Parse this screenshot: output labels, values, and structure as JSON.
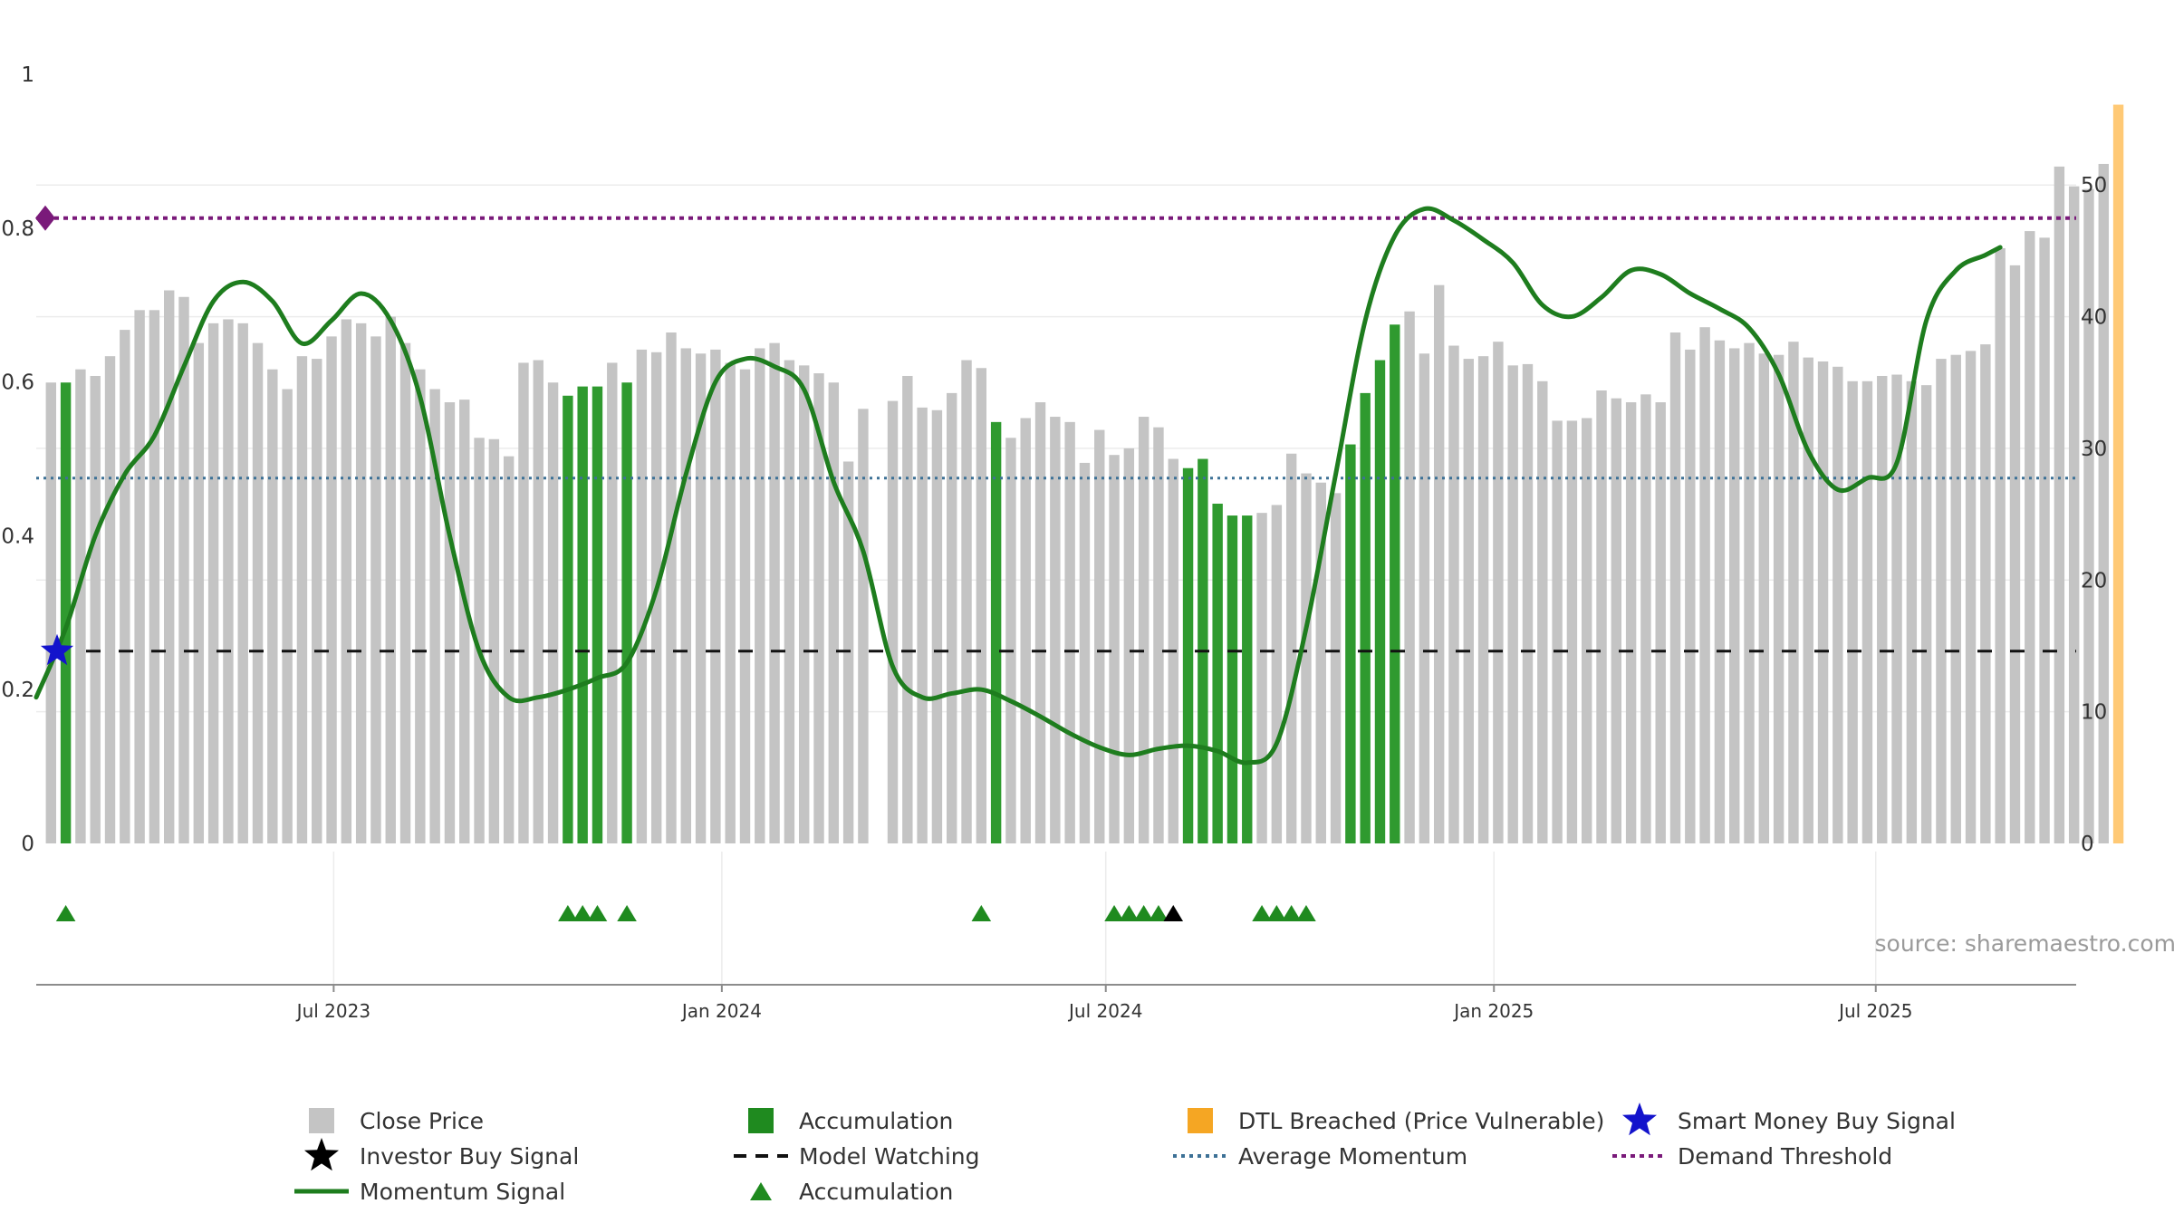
{
  "colors": {
    "close": "#c4c4c4",
    "accumulation": "#2f9a2f",
    "dtl": "#ffc975",
    "momentum": "#1e7d1e",
    "average": "#3d7196",
    "demand": "#7a1a7a",
    "watch": "#111111",
    "smart": "#1313cc",
    "investor": "#000000"
  },
  "chart_data": {
    "type": "bar",
    "left_axis": {
      "ylim": [
        0,
        1
      ],
      "ticks": [
        "0",
        "0.2",
        "0.4",
        "0.6",
        "0.8",
        "1"
      ],
      "tick_values": [
        0,
        0.2,
        0.4,
        0.6,
        0.8,
        1
      ]
    },
    "right_axis": {
      "ylim": [
        0,
        56
      ],
      "ticks": [
        "0",
        "10",
        "20",
        "30",
        "40",
        "50"
      ],
      "tick_values": [
        0,
        10,
        20,
        30,
        40,
        50
      ]
    },
    "x_range": [
      "2023-02-10",
      "2025-10-04"
    ],
    "x_ticks": [
      {
        "label": "Jul 2023",
        "date": "2023-07-01"
      },
      {
        "label": "Jan 2024",
        "date": "2024-01-01"
      },
      {
        "label": "Jul 2024",
        "date": "2024-07-01"
      },
      {
        "label": "Jan 2025",
        "date": "2025-01-01"
      },
      {
        "label": "Jul 2025",
        "date": "2025-07-01"
      }
    ],
    "start_date": "2023-02-17",
    "bar_interval_days": 7,
    "close_price": [
      35,
      35,
      36,
      35.5,
      37,
      39,
      40.5,
      40.5,
      42,
      41.5,
      38,
      39.5,
      39.8,
      39.5,
      38,
      36,
      34.5,
      37,
      36.8,
      38.5,
      39.8,
      39.5,
      38.5,
      40,
      38,
      36,
      34.5,
      33.5,
      33.7,
      30.8,
      30.7,
      29.4,
      36.5,
      36.7,
      35,
      34,
      34.7,
      34.7,
      36.5,
      35,
      37.5,
      37.3,
      38.8,
      37.6,
      37.2,
      37.5,
      36.5,
      36,
      37.6,
      38,
      36.7,
      36.3,
      35.7,
      35,
      29,
      33,
      null,
      33.6,
      35.5,
      33.1,
      32.9,
      34.2,
      36.7,
      36.1,
      32,
      30.8,
      32.3,
      33.5,
      32.4,
      32.0,
      28.9,
      31.4,
      29.5,
      30.0,
      32.4,
      31.6,
      29.2,
      28.5,
      29.2,
      25.8,
      24.9,
      24.9,
      25.1,
      25.7,
      29.6,
      28.1,
      27.4,
      26.6,
      30.3,
      34.2,
      36.7,
      39.4,
      40.4,
      37.2,
      42.4,
      37.8,
      36.8,
      37.0,
      38.1,
      36.3,
      36.4,
      35.1,
      32.1,
      32.1,
      32.3,
      34.4,
      33.8,
      33.5,
      34.1,
      33.5,
      38.8,
      37.5,
      39.2,
      38.2,
      37.6,
      38.0,
      37.2,
      37.1,
      38.1,
      36.9,
      36.6,
      36.2,
      35.1,
      35.1,
      35.5,
      35.6,
      35.1,
      34.8,
      36.8,
      37.1,
      37.4,
      37.9,
      45.2,
      43.9,
      46.5,
      46.0,
      51.4,
      49.9,
      49.7,
      51.6,
      56.1
    ],
    "bar_category": [
      "c",
      "a",
      "c",
      "c",
      "c",
      "c",
      "c",
      "c",
      "c",
      "c",
      "c",
      "c",
      "c",
      "c",
      "c",
      "c",
      "c",
      "c",
      "c",
      "c",
      "c",
      "c",
      "c",
      "c",
      "c",
      "c",
      "c",
      "c",
      "c",
      "c",
      "c",
      "c",
      "c",
      "c",
      "c",
      "a",
      "a",
      "a",
      "c",
      "a",
      "c",
      "c",
      "c",
      "c",
      "c",
      "c",
      "c",
      "c",
      "c",
      "c",
      "c",
      "c",
      "c",
      "c",
      "c",
      "c",
      "c",
      "c",
      "c",
      "c",
      "c",
      "c",
      "c",
      "c",
      "a",
      "c",
      "c",
      "c",
      "c",
      "c",
      "c",
      "c",
      "c",
      "c",
      "c",
      "c",
      "c",
      "a",
      "a",
      "a",
      "a",
      "a",
      "c",
      "c",
      "c",
      "c",
      "c",
      "c",
      "a",
      "a",
      "a",
      "a",
      "c",
      "c",
      "c",
      "c",
      "c",
      "c",
      "c",
      "c",
      "c",
      "c",
      "c",
      "c",
      "c",
      "c",
      "c",
      "c",
      "c",
      "c",
      "c",
      "c",
      "c",
      "c",
      "c",
      "c",
      "c",
      "c",
      "c",
      "c",
      "c",
      "c",
      "c",
      "c",
      "c",
      "c",
      "c",
      "c",
      "c",
      "c",
      "c",
      "c",
      "c",
      "c",
      "c",
      "c",
      "c",
      "c",
      "c",
      "c",
      "d",
      "d",
      "d",
      "d",
      "d"
    ],
    "momentum": [
      [
        "2023-02-10",
        0.19
      ],
      [
        "2023-02-24",
        0.28
      ],
      [
        "2023-03-10",
        0.4
      ],
      [
        "2023-03-24",
        0.48
      ],
      [
        "2023-04-07",
        0.53
      ],
      [
        "2023-04-21",
        0.62
      ],
      [
        "2023-05-05",
        0.705
      ],
      [
        "2023-05-19",
        0.73
      ],
      [
        "2023-06-02",
        0.705
      ],
      [
        "2023-06-16",
        0.65
      ],
      [
        "2023-06-30",
        0.68
      ],
      [
        "2023-07-14",
        0.715
      ],
      [
        "2023-07-28",
        0.68
      ],
      [
        "2023-08-11",
        0.58
      ],
      [
        "2023-08-25",
        0.4
      ],
      [
        "2023-09-08",
        0.25
      ],
      [
        "2023-09-22",
        0.19
      ],
      [
        "2023-10-06",
        0.19
      ],
      [
        "2023-10-20",
        0.2
      ],
      [
        "2023-11-03",
        0.215
      ],
      [
        "2023-11-17",
        0.235
      ],
      [
        "2023-12-01",
        0.33
      ],
      [
        "2023-12-15",
        0.48
      ],
      [
        "2023-12-29",
        0.6
      ],
      [
        "2024-01-12",
        0.63
      ],
      [
        "2024-01-26",
        0.62
      ],
      [
        "2024-02-09",
        0.59
      ],
      [
        "2024-02-23",
        0.47
      ],
      [
        "2024-03-08",
        0.38
      ],
      [
        "2024-03-22",
        0.23
      ],
      [
        "2024-04-05",
        0.19
      ],
      [
        "2024-04-19",
        0.195
      ],
      [
        "2024-05-03",
        0.2
      ],
      [
        "2024-05-17",
        0.185
      ],
      [
        "2024-05-31",
        0.165
      ],
      [
        "2024-06-14",
        0.143
      ],
      [
        "2024-06-28",
        0.125
      ],
      [
        "2024-07-12",
        0.115
      ],
      [
        "2024-07-26",
        0.123
      ],
      [
        "2024-08-09",
        0.127
      ],
      [
        "2024-08-23",
        0.12
      ],
      [
        "2024-09-06",
        0.105
      ],
      [
        "2024-09-20",
        0.13
      ],
      [
        "2024-10-04",
        0.28
      ],
      [
        "2024-10-18",
        0.48
      ],
      [
        "2024-11-01",
        0.68
      ],
      [
        "2024-11-15",
        0.79
      ],
      [
        "2024-11-29",
        0.825
      ],
      [
        "2024-12-13",
        0.81
      ],
      [
        "2024-12-27",
        0.785
      ],
      [
        "2025-01-10",
        0.755
      ],
      [
        "2025-01-24",
        0.7
      ],
      [
        "2025-02-07",
        0.685
      ],
      [
        "2025-02-21",
        0.71
      ],
      [
        "2025-03-07",
        0.745
      ],
      [
        "2025-03-21",
        0.74
      ],
      [
        "2025-04-04",
        0.715
      ],
      [
        "2025-04-18",
        0.695
      ],
      [
        "2025-05-02",
        0.67
      ],
      [
        "2025-05-16",
        0.61
      ],
      [
        "2025-05-30",
        0.51
      ],
      [
        "2025-06-13",
        0.46
      ],
      [
        "2025-06-27",
        0.475
      ],
      [
        "2025-07-11",
        0.495
      ],
      [
        "2025-07-25",
        0.68
      ],
      [
        "2025-08-08",
        0.745
      ],
      [
        "2025-08-22",
        0.765
      ],
      [
        "2025-08-29",
        0.775
      ]
    ],
    "average_momentum": 0.475,
    "demand_threshold": 0.813,
    "model_watching": 0.25,
    "smart_money_buy_signals": [
      {
        "date": "2023-02-10",
        "value": 0.25
      }
    ],
    "accumulation_markers": [
      "2023-02-24",
      "2023-10-20",
      "2023-10-27",
      "2023-11-03",
      "2023-11-17",
      "2024-05-03",
      "2024-07-05",
      "2024-07-12",
      "2024-07-19",
      "2024-07-26",
      "2024-09-13",
      "2024-09-20",
      "2024-09-27",
      "2024-10-04"
    ],
    "investor_buy_markers": [
      "2024-08-02"
    ],
    "legend": [
      {
        "label": "Close Price",
        "symbol": "gray-square"
      },
      {
        "label": "Accumulation",
        "symbol": "green-square"
      },
      {
        "label": "DTL Breached (Price Vulnerable)",
        "symbol": "orange-square"
      },
      {
        "label": "Smart Money Buy Signal",
        "symbol": "blue-star"
      },
      {
        "label": "Investor Buy Signal",
        "symbol": "black-star"
      },
      {
        "label": "Model Watching",
        "symbol": "black-dash"
      },
      {
        "label": "Average Momentum",
        "symbol": "blue-dots"
      },
      {
        "label": "Demand Threshold",
        "symbol": "purple-dots"
      },
      {
        "label": "Momentum Signal",
        "symbol": "green-line"
      },
      {
        "label": "Accumulation",
        "symbol": "green-triangle"
      }
    ],
    "source": "source: sharemaestro.com"
  }
}
